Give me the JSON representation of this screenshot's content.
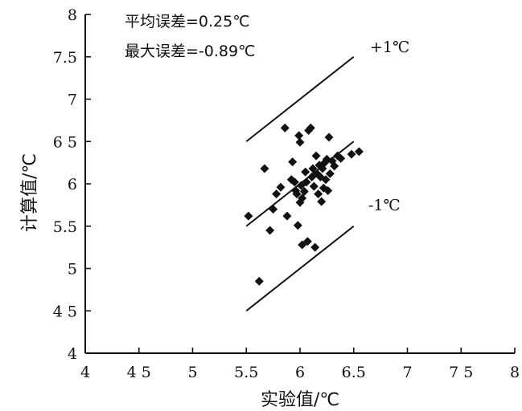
{
  "chart_data": {
    "type": "scatter",
    "xlabel": "实验值/℃",
    "ylabel": "计算值/℃",
    "xlim": [
      4,
      8
    ],
    "ylim": [
      4,
      8
    ],
    "x_ticks": [
      4,
      4.5,
      5,
      5.5,
      6,
      6.5,
      7,
      7.5,
      8
    ],
    "x_tick_labels": [
      "4",
      "4 5",
      "5",
      "5.5",
      "6",
      "6.5",
      "7",
      "7 5",
      "8"
    ],
    "y_ticks": [
      4,
      4.5,
      5,
      5.5,
      6,
      6.5,
      7,
      7.5,
      8
    ],
    "y_tick_labels": [
      "4",
      "4 5",
      "5",
      "5.5",
      "6",
      "6 5",
      "7",
      "7.5",
      "8"
    ],
    "grid": false,
    "annotations": {
      "mean_error": "平均误差=0.25℃",
      "max_error": "最大误差=-0.89℃",
      "upper_band": "+1℃",
      "lower_band": "-1℃"
    },
    "lines": [
      {
        "label": "+1℃",
        "x": [
          5.5,
          6.5
        ],
        "y": [
          6.5,
          7.5
        ]
      },
      {
        "label": "",
        "x": [
          5.5,
          6.5
        ],
        "y": [
          5.5,
          6.5
        ]
      },
      {
        "label": "-1℃",
        "x": [
          5.5,
          6.5
        ],
        "y": [
          4.5,
          5.5
        ]
      }
    ],
    "points": [
      [
        5.52,
        5.62
      ],
      [
        5.62,
        4.85
      ],
      [
        5.67,
        6.18
      ],
      [
        5.72,
        5.45
      ],
      [
        5.75,
        5.7
      ],
      [
        5.78,
        5.88
      ],
      [
        5.82,
        5.96
      ],
      [
        5.86,
        6.66
      ],
      [
        5.88,
        5.62
      ],
      [
        5.92,
        6.05
      ],
      [
        5.93,
        6.26
      ],
      [
        5.95,
        6.02
      ],
      [
        5.96,
        5.92
      ],
      [
        5.97,
        5.88
      ],
      [
        5.98,
        5.51
      ],
      [
        5.99,
        6.57
      ],
      [
        6.0,
        6.49
      ],
      [
        6.0,
        5.78
      ],
      [
        6.01,
        5.98
      ],
      [
        6.02,
        5.83
      ],
      [
        6.02,
        5.28
      ],
      [
        6.04,
        5.91
      ],
      [
        6.05,
        6.14
      ],
      [
        6.06,
        6.02
      ],
      [
        6.07,
        5.32
      ],
      [
        6.08,
        6.63
      ],
      [
        6.1,
        6.66
      ],
      [
        6.11,
        6.08
      ],
      [
        6.12,
        6.18
      ],
      [
        6.13,
        5.97
      ],
      [
        6.14,
        5.25
      ],
      [
        6.15,
        6.33
      ],
      [
        6.16,
        6.12
      ],
      [
        6.17,
        5.88
      ],
      [
        6.18,
        6.22
      ],
      [
        6.19,
        6.08
      ],
      [
        6.2,
        5.79
      ],
      [
        6.21,
        6.18
      ],
      [
        6.22,
        5.95
      ],
      [
        6.23,
        6.25
      ],
      [
        6.24,
        6.05
      ],
      [
        6.25,
        6.29
      ],
      [
        6.26,
        5.92
      ],
      [
        6.27,
        6.55
      ],
      [
        6.28,
        6.12
      ],
      [
        6.3,
        6.27
      ],
      [
        6.32,
        6.21
      ],
      [
        6.35,
        6.33
      ],
      [
        6.38,
        6.3
      ],
      [
        6.48,
        6.35
      ],
      [
        6.55,
        6.38
      ]
    ]
  }
}
